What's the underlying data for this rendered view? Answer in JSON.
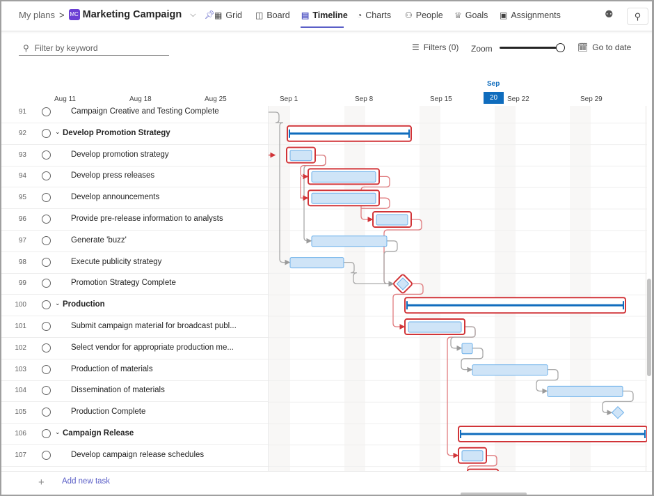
{
  "header": {
    "breadcrumb": "My plans",
    "separator": ">",
    "plan_badge": "MC",
    "plan_title": "Marketing Campaign",
    "tabs": [
      {
        "label": "Grid",
        "icon": "grid-icon"
      },
      {
        "label": "Board",
        "icon": "board-icon"
      },
      {
        "label": "Timeline",
        "icon": "timeline-icon",
        "active": true
      },
      {
        "label": "Charts",
        "icon": "charts-icon"
      },
      {
        "label": "People",
        "icon": "people-icon"
      },
      {
        "label": "Goals",
        "icon": "trophy-icon"
      },
      {
        "label": "Assignments",
        "icon": "assignments-icon"
      }
    ]
  },
  "toolbar": {
    "search_placeholder": "Filter by keyword",
    "filters_label": "Filters (0)",
    "zoom_label": "Zoom",
    "zoom_level": 1.0,
    "goto_label": "Go to date"
  },
  "timeline": {
    "week_labels": [
      "Aug 11",
      "Aug 18",
      "Aug 25",
      "Sep 1",
      "Sep 8",
      "Sep 15",
      "Sep 22",
      "Sep 29"
    ],
    "today_month": "Sep",
    "today_day": "20"
  },
  "tasks": [
    {
      "num": "91",
      "name": "Campaign Creative and Testing Complete",
      "summary": false
    },
    {
      "num": "92",
      "name": "Develop Promotion Strategy",
      "summary": true
    },
    {
      "num": "93",
      "name": "Develop promotion strategy",
      "summary": false
    },
    {
      "num": "94",
      "name": "Develop press releases",
      "summary": false
    },
    {
      "num": "95",
      "name": "Develop announcements",
      "summary": false
    },
    {
      "num": "96",
      "name": "Provide pre-release information to analysts",
      "summary": false
    },
    {
      "num": "97",
      "name": "Generate 'buzz'",
      "summary": false
    },
    {
      "num": "98",
      "name": "Execute publicity strategy",
      "summary": false
    },
    {
      "num": "99",
      "name": "Promotion Strategy Complete",
      "summary": false
    },
    {
      "num": "100",
      "name": "Production",
      "summary": true
    },
    {
      "num": "101",
      "name": "Submit campaign material for broadcast publ...",
      "summary": false
    },
    {
      "num": "102",
      "name": "Select vendor for appropriate production me...",
      "summary": false
    },
    {
      "num": "103",
      "name": "Production of materials",
      "summary": false
    },
    {
      "num": "104",
      "name": "Dissemination of materials",
      "summary": false
    },
    {
      "num": "105",
      "name": "Production Complete",
      "summary": false
    },
    {
      "num": "106",
      "name": "Campaign Release",
      "summary": true
    },
    {
      "num": "107",
      "name": "Develop campaign release schedules",
      "summary": false
    }
  ],
  "add_task_label": "Add new task",
  "colors": {
    "accent": "#5b5fc7",
    "critical": "#d13438",
    "bar_fill": "#cfe4f7",
    "bar_border": "#6cb0ea",
    "summary_line": "#0f6cbd"
  }
}
